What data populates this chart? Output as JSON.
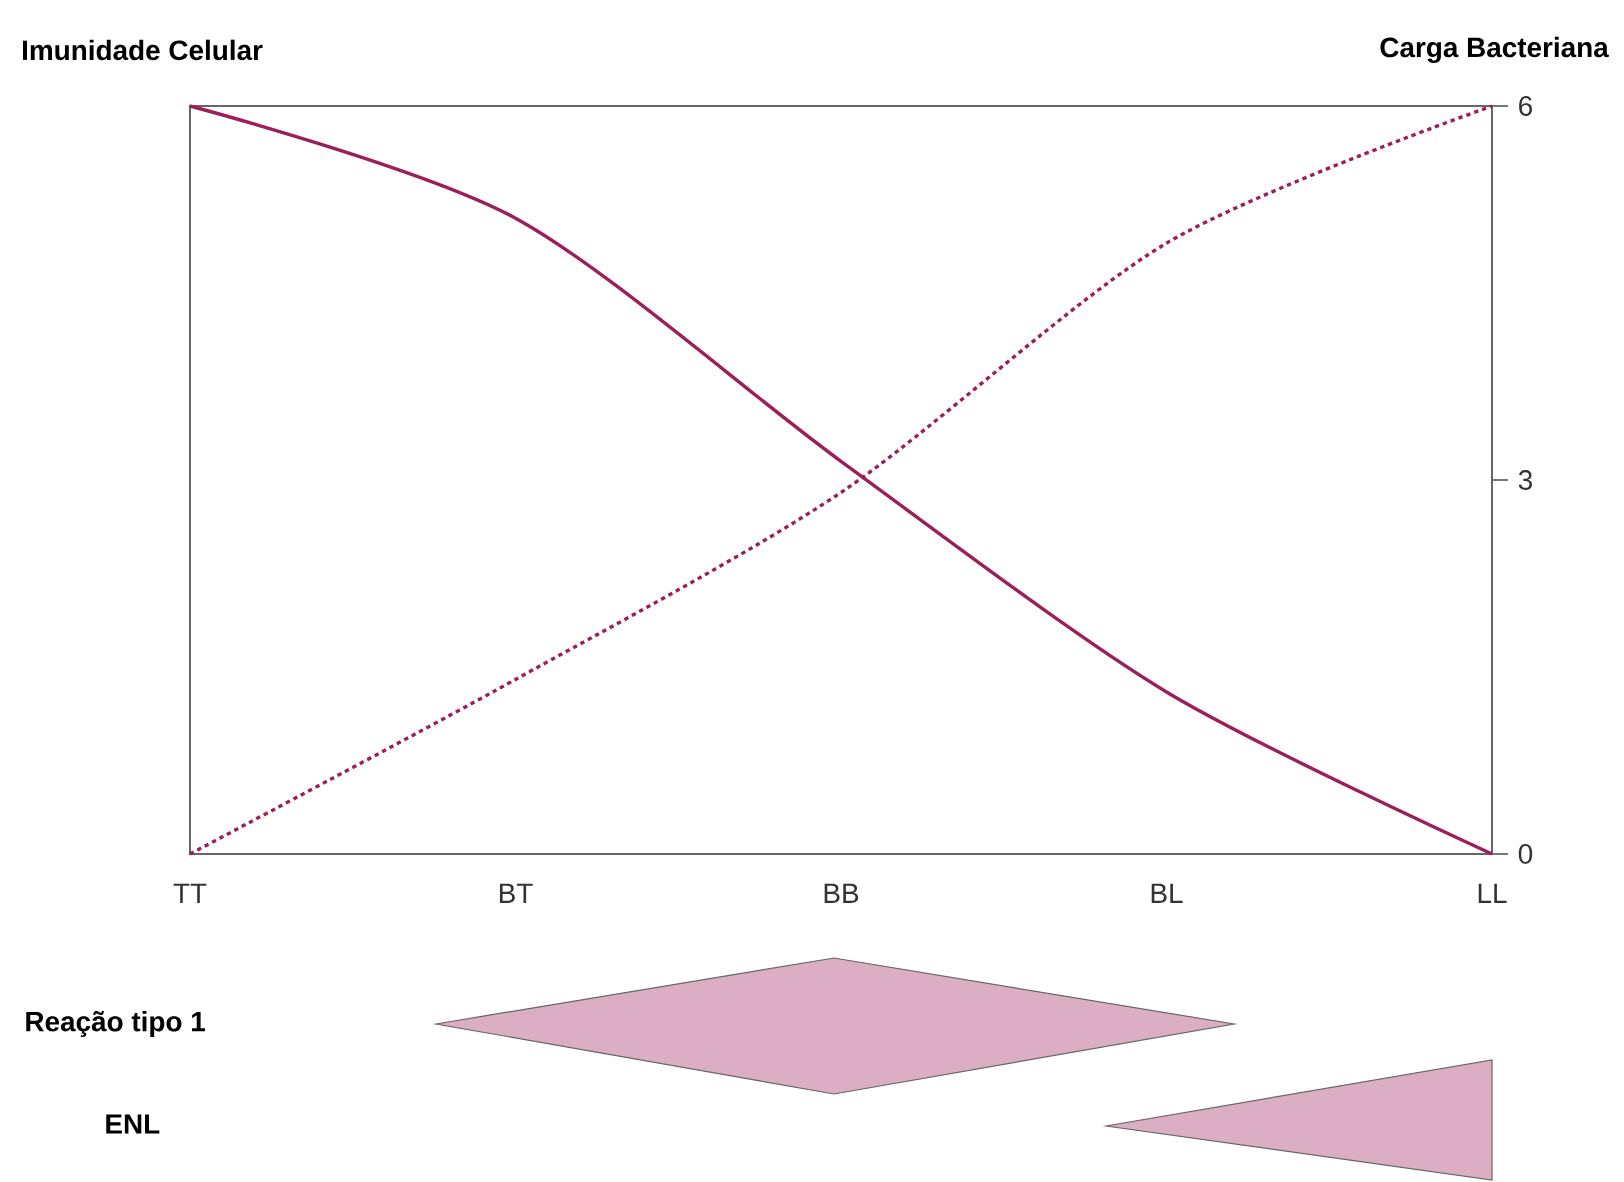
{
  "chart_data": {
    "type": "line",
    "ylabel": "Imunidade Celular",
    "y2label": "Carga Bacteriana",
    "categories": [
      "TT",
      "BT",
      "BB",
      "BL",
      "LL"
    ],
    "series": [
      {
        "color": "#9c1f5a",
        "line_style": "solid",
        "values": [
          6,
          5.1,
          3.15,
          1.3,
          0
        ]
      },
      {
        "color": "#9c1f5a",
        "line_style": "dotted",
        "values": [
          0,
          1.4,
          2.9,
          4.9,
          6
        ]
      }
    ],
    "ylim": [
      0,
      6
    ],
    "yticks": [
      0,
      3,
      6
    ],
    "annotations": [
      "Reação tipo 1",
      "ENL"
    ]
  }
}
